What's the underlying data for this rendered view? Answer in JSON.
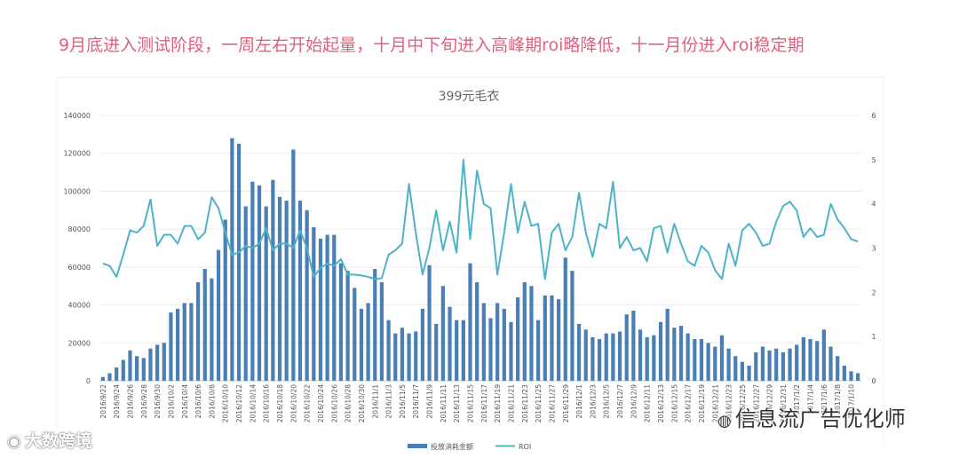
{
  "headline": "9月底进入测试阶段，一周左右开始起量，十月中下旬进入高峰期roi略降低，十一月份进入roi稳定期",
  "watermarks": {
    "left": "大数跨境",
    "right": "信息流广告优化师"
  },
  "colors": {
    "bar": "#4a7fb5",
    "line": "#4fb3c8",
    "headline": "#e0607e"
  },
  "chart_data": {
    "type": "bar",
    "title": "399元毛衣",
    "legend_position": "bottom",
    "y_left": {
      "min": 0,
      "max": 140000,
      "ticks": [
        "0",
        "20000",
        "40000",
        "60000",
        "80000",
        "100000",
        "120000",
        "140000"
      ]
    },
    "y_right": {
      "min": 0,
      "max": 6,
      "ticks": [
        "0",
        "1",
        "2",
        "3",
        "4",
        "5",
        "6"
      ]
    },
    "x_labels": [
      "2016/9/22",
      "2016/9/24",
      "2016/9/26",
      "2016/9/28",
      "2016/9/30",
      "2016/10/2",
      "2016/10/4",
      "2016/10/6",
      "2016/10/8",
      "2016/10/10",
      "2016/10/12",
      "2016/10/14",
      "2016/10/16",
      "2016/10/18",
      "2016/10/20",
      "2016/10/22",
      "2016/10/24",
      "2016/10/26",
      "2016/10/28",
      "2016/10/30",
      "2016/11/1",
      "2016/11/3",
      "2016/11/5",
      "2016/11/7",
      "2016/11/9",
      "2016/11/11",
      "2016/11/13",
      "2016/11/15",
      "2016/11/17",
      "2016/11/19",
      "2016/11/21",
      "2016/11/23",
      "2016/11/25",
      "2016/11/27",
      "2016/11/29",
      "2016/12/1",
      "2016/12/3",
      "2016/12/5",
      "2016/12/7",
      "2016/12/9",
      "2016/12/11",
      "2016/12/13",
      "2016/12/15",
      "2016/12/17",
      "2016/12/19",
      "2016/12/21",
      "2016/12/23",
      "2016/12/25",
      "2016/12/27",
      "2016/12/29",
      "2016/12/31",
      "2017/1/2",
      "2017/1/4",
      "2017/1/6",
      "2017/1/8",
      "2017/1/10"
    ],
    "series": [
      {
        "name": "投放消耗金额",
        "kind": "bar",
        "axis": "left",
        "values": [
          2000,
          4000,
          7000,
          11000,
          16000,
          13000,
          12000,
          17000,
          19000,
          20000,
          36000,
          38000,
          41000,
          41000,
          52000,
          59000,
          54000,
          69000,
          85000,
          128000,
          125000,
          92000,
          105000,
          103000,
          92000,
          106000,
          97000,
          95000,
          122000,
          95000,
          90000,
          81000,
          75000,
          77000,
          77000,
          62000,
          58000,
          49000,
          38000,
          41000,
          59000,
          52000,
          32000,
          25000,
          28000,
          25000,
          26000,
          38000,
          61000,
          30000,
          50000,
          39000,
          32000,
          32000,
          62000,
          52000,
          41000,
          33000,
          41000,
          38000,
          31000,
          44000,
          52000,
          50000,
          32000,
          45000,
          45000,
          43000,
          65000,
          58000,
          30000,
          27000,
          23000,
          22000,
          25000,
          25000,
          26000,
          35000,
          37000,
          27000,
          23000,
          24000,
          31000,
          38000,
          28000,
          29000,
          25000,
          22000,
          22000,
          20000,
          18000,
          24000,
          17000,
          13000,
          10000,
          8000,
          15000,
          18000,
          16000,
          17000,
          15000,
          17000,
          19000,
          23000,
          22000,
          21000,
          27000,
          18000,
          13000,
          8000,
          5000,
          4000
        ]
      },
      {
        "name": "ROI",
        "kind": "line",
        "axis": "right",
        "values": [
          2.65,
          2.6,
          2.35,
          2.85,
          3.4,
          3.35,
          3.5,
          4.1,
          3.05,
          3.3,
          3.3,
          3.1,
          3.5,
          3.5,
          3.2,
          3.35,
          4.15,
          3.9,
          3.35,
          2.85,
          2.9,
          3.05,
          3.0,
          3.1,
          3.45,
          2.95,
          3.1,
          3.1,
          3.0,
          3.4,
          3.0,
          2.35,
          2.55,
          2.65,
          2.6,
          2.75,
          2.4,
          2.4,
          2.38,
          2.35,
          2.3,
          2.32,
          2.85,
          2.95,
          3.1,
          4.45,
          3.35,
          2.4,
          3.0,
          3.85,
          2.95,
          3.6,
          2.9,
          5.0,
          3.2,
          4.75,
          4.0,
          3.9,
          2.4,
          3.35,
          4.45,
          3.35,
          4.05,
          3.5,
          3.55,
          2.3,
          3.35,
          3.55,
          2.95,
          3.25,
          4.25,
          3.35,
          2.8,
          3.55,
          3.45,
          4.5,
          3.0,
          3.25,
          2.95,
          3.0,
          2.7,
          3.45,
          3.5,
          2.9,
          3.55,
          3.1,
          2.7,
          2.6,
          3.05,
          2.9,
          2.5,
          2.3,
          3.1,
          2.6,
          3.4,
          3.55,
          3.35,
          3.05,
          3.1,
          3.6,
          3.95,
          4.05,
          3.85,
          3.25,
          3.45,
          3.25,
          3.3,
          4.0,
          3.65,
          3.45,
          3.2,
          3.15
        ]
      }
    ]
  }
}
